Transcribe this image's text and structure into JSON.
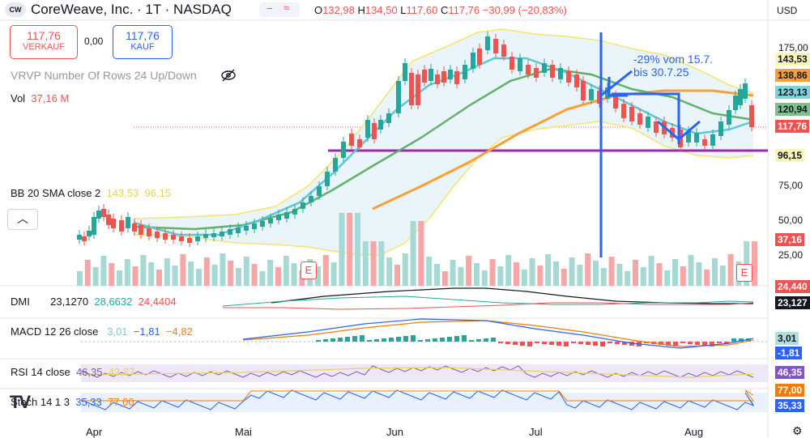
{
  "header": {
    "logo_text": "CW",
    "symbol_title": "CoreWeave, Inc. · 1T · NASDAQ",
    "ohlc": {
      "o_label": "O",
      "o_value": "132,98",
      "h_label": "H",
      "h_value": "134,50",
      "l_label": "L",
      "l_value": "117,60",
      "c_label": "C",
      "c_value": "117,76",
      "change": "−30,99 (−20,83%)"
    },
    "currency": "USD"
  },
  "trade": {
    "sell_price": "117,76",
    "sell_label": "VERKAUF",
    "spread": "0,00",
    "buy_price": "117,76",
    "buy_label": "KAUF"
  },
  "legends": {
    "vrvp": "VRVP Number Of Rows 24 Up/Down",
    "vol_label": "Vol",
    "vol_value": "37,16 M",
    "bb_label": "BB 20 SMA close 2",
    "bb_upper": "143,53",
    "bb_lower": "96,15",
    "dmi_label": "DMI",
    "dmi_v1": "23,1270",
    "dmi_v2": "28,6632",
    "dmi_v3": "24,4404",
    "macd_label": "MACD 12 26 close",
    "macd_v1": "3,01",
    "macd_v2": "−1,81",
    "macd_v3": "−4,82",
    "rsi_label": "RSI 14 close",
    "rsi_v1": "46,35",
    "rsi_v2": "43,87",
    "stoch_label": "Stoch 14 1 3",
    "stoch_v1": "35,33",
    "stoch_v2": "77,00"
  },
  "annotation": {
    "line1": "-29% vom 15.7.",
    "line2": "bis 30.7.25"
  },
  "price_axis": {
    "ticks": [
      "175,00",
      "75,00",
      "50,00",
      "25,00"
    ],
    "tags": [
      {
        "text": "143,53",
        "bg": "#fdf5b5",
        "fg": "#131722"
      },
      {
        "text": "138,86",
        "bg": "#f7a035",
        "fg": "#131722"
      },
      {
        "text": "123,13",
        "bg": "#7fd3d9",
        "fg": "#131722"
      },
      {
        "text": "120,94",
        "bg": "#7cc28a",
        "fg": "#131722"
      },
      {
        "text": "117,76",
        "bg": "#ef5350",
        "fg": "#ffffff"
      },
      {
        "text": "96,15",
        "bg": "#fdf5b5",
        "fg": "#131722"
      },
      {
        "text": "37,16",
        "bg": "#ef5350",
        "fg": "#ffffff"
      },
      {
        "text": "24,440",
        "bg": "#ef5350",
        "fg": "#ffffff"
      },
      {
        "text": "23,127",
        "bg": "#131722",
        "fg": "#ffffff"
      },
      {
        "text": "3,01",
        "bg": "#b2dfdb",
        "fg": "#131722"
      },
      {
        "text": "-1,81",
        "bg": "#2962ff",
        "fg": "#ffffff"
      },
      {
        "text": "46,35",
        "bg": "#7e57c2",
        "fg": "#ffffff"
      },
      {
        "text": "77,00",
        "bg": "#f57c00",
        "fg": "#ffffff"
      },
      {
        "text": "35,33",
        "bg": "#2962ff",
        "fg": "#ffffff"
      }
    ]
  },
  "months": [
    "Apr",
    "Mai",
    "Jun",
    "Jul",
    "Aug"
  ],
  "earnings_marker": "E",
  "watermark": "TV",
  "colors": {
    "up": "#26a69a",
    "down": "#ef5350",
    "bb": "#f7e46a",
    "ema_fast": "#5ac8d6",
    "ema_mid": "#5fb364",
    "ema_slow": "#f7a035",
    "support": "#9c27b0",
    "annotation": "#2962ff"
  }
}
